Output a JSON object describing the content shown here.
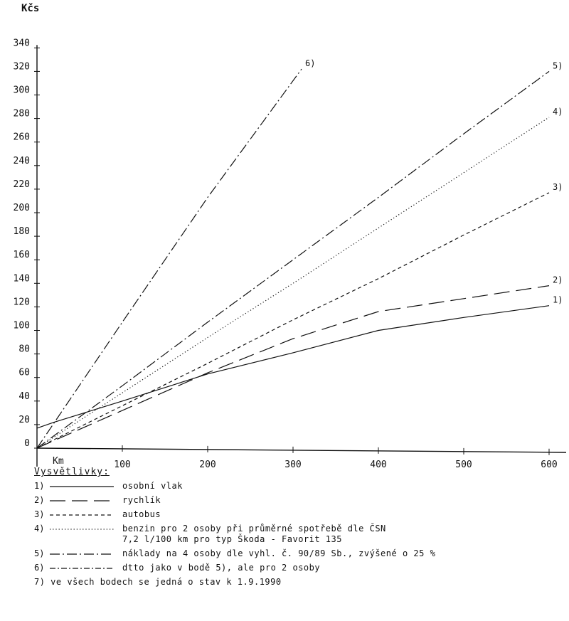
{
  "chart_data": {
    "type": "line",
    "title": "",
    "xlabel": "Km",
    "ylabel": "Kčs",
    "xlim": [
      0,
      620
    ],
    "ylim": [
      0,
      340
    ],
    "x_ticks": [
      100,
      200,
      300,
      400,
      500,
      600
    ],
    "y_ticks": [
      0,
      20,
      40,
      60,
      80,
      100,
      120,
      140,
      160,
      180,
      200,
      220,
      240,
      260,
      280,
      300,
      320,
      340
    ],
    "grid": false,
    "series": [
      {
        "name": "1)",
        "style": "solid",
        "points": [
          [
            0,
            17
          ],
          [
            20,
            22
          ],
          [
            100,
            40
          ],
          [
            200,
            63
          ],
          [
            300,
            81
          ],
          [
            400,
            100
          ],
          [
            500,
            111
          ],
          [
            600,
            121
          ]
        ]
      },
      {
        "name": "2)",
        "style": "long-dash",
        "points": [
          [
            0,
            0
          ],
          [
            200,
            64
          ],
          [
            300,
            93
          ],
          [
            400,
            116
          ],
          [
            500,
            127
          ],
          [
            600,
            138
          ]
        ]
      },
      {
        "name": "3)",
        "style": "dashed",
        "points": [
          [
            0,
            0
          ],
          [
            100,
            36
          ],
          [
            200,
            72
          ],
          [
            300,
            109
          ],
          [
            400,
            144
          ],
          [
            500,
            181
          ],
          [
            600,
            217
          ]
        ]
      },
      {
        "name": "4)",
        "style": "dotted",
        "points": [
          [
            0,
            0
          ],
          [
            100,
            47
          ],
          [
            200,
            94
          ],
          [
            300,
            140
          ],
          [
            400,
            187
          ],
          [
            500,
            234
          ],
          [
            600,
            281
          ]
        ]
      },
      {
        "name": "5)",
        "style": "dash-dot",
        "points": [
          [
            0,
            0
          ],
          [
            100,
            53
          ],
          [
            200,
            107
          ],
          [
            300,
            160
          ],
          [
            400,
            213
          ],
          [
            500,
            267
          ],
          [
            600,
            320
          ]
        ]
      },
      {
        "name": "6)",
        "style": "dash-dot",
        "points": [
          [
            0,
            0
          ],
          [
            100,
            107
          ],
          [
            200,
            213
          ],
          [
            310,
            322
          ]
        ]
      }
    ]
  },
  "legend": {
    "title": "Vysvětlivky:",
    "items": [
      {
        "num": "1)",
        "style": "solid",
        "text": "osobní vlak"
      },
      {
        "num": "2)",
        "style": "long-dash",
        "text": "rychlík"
      },
      {
        "num": "3)",
        "style": "dashed",
        "text": "autobus"
      },
      {
        "num": "4)",
        "style": "dotted",
        "text": "benzin pro 2 osoby při průměrné spotřebě dle ČSN\n7,2 l/100 km pro typ Škoda - Favorit 135"
      },
      {
        "num": "5)",
        "style": "dash-dot",
        "text": "náklady na 4 osoby dle vyhl. č. 90/89 Sb., zvýšené o 25 %"
      },
      {
        "num": "6)",
        "style": "dash-dot-dense",
        "text": "dtto jako v bodě 5), ale pro 2 osoby"
      }
    ],
    "note": "7) ve všech bodech se jedná o stav k 1.9.1990"
  }
}
